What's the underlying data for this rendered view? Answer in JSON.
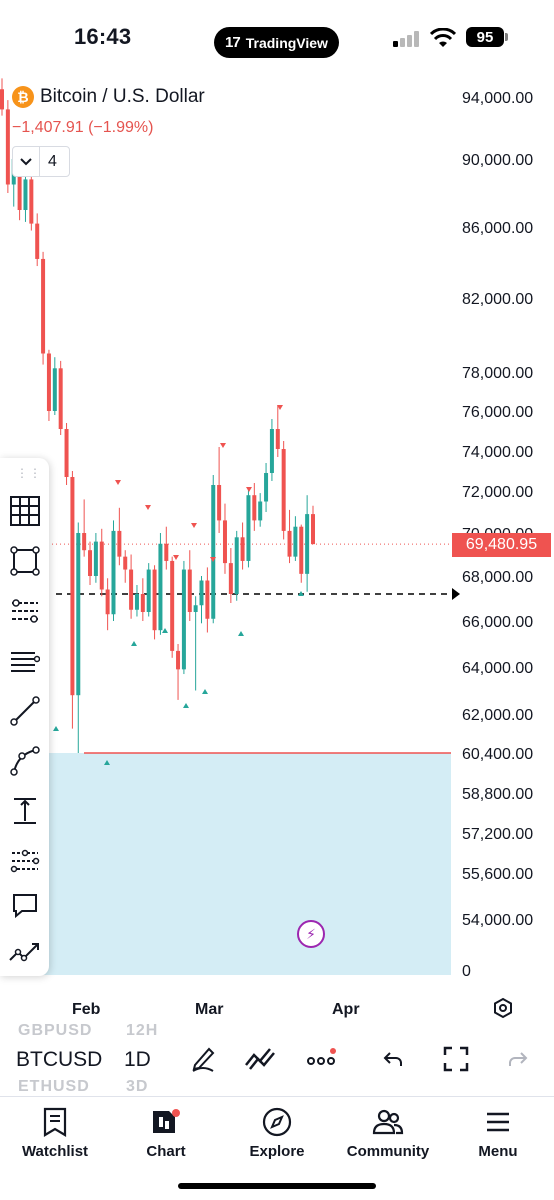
{
  "status": {
    "time": "16:43",
    "app_pill": "TradingView",
    "app_logo": "17",
    "battery": "95"
  },
  "symbol": {
    "title": "Bitcoin / U.S. Dollar",
    "change": "−1,407.91 (−1.99%)",
    "indicator_count": "4",
    "icon_glyph": "₿"
  },
  "price_axis": {
    "labels": [
      "94,000.00",
      "90,000.00",
      "86,000.00",
      "82,000.00",
      "78,000.00",
      "76,000.00",
      "74,000.00",
      "72,000.00",
      "70,000.00",
      "68,000.00",
      "66,000.00",
      "64,000.00",
      "62,000.00",
      "60,400.00",
      "58,800.00",
      "57,200.00",
      "55,600.00",
      "54,000.00"
    ],
    "volume_zero": "0",
    "last_price": "69,480.95"
  },
  "time_axis": {
    "labels": [
      "Feb",
      "Mar",
      "Apr"
    ]
  },
  "bottom_toolbar": {
    "symbol": "BTCUSD",
    "interval": "1D",
    "prev_symbol": "GBPUSD",
    "prev_interval": "12H",
    "next_symbol": "ETHUSD",
    "next_interval": "3D"
  },
  "tabs": [
    {
      "label": "Watchlist",
      "icon": "watchlist-icon"
    },
    {
      "label": "Chart",
      "icon": "chart-icon"
    },
    {
      "label": "Explore",
      "icon": "compass-icon"
    },
    {
      "label": "Community",
      "icon": "community-icon"
    },
    {
      "label": "Menu",
      "icon": "menu-icon"
    }
  ],
  "drawing_tools": [
    "grid-icon",
    "rectangle-icon",
    "fib-retracement-icon",
    "parallel-lines-icon",
    "trend-line-icon",
    "curve-icon",
    "price-range-icon",
    "fib-extension-icon",
    "comment-icon",
    "forecast-icon"
  ],
  "colors": {
    "up": "#26a69a",
    "down": "#ef5350",
    "zone": "#d4edf5",
    "accent": "#9c27b0",
    "text_negative": "#e5544f"
  },
  "chart_data": {
    "type": "candlestick",
    "series_name": "BTCUSD 1D",
    "y_range": [
      52000,
      96000
    ],
    "last_price": 69480.95,
    "horizontal_lines": [
      {
        "style": "dashed",
        "color": "#000000",
        "value": 67200
      },
      {
        "style": "solid",
        "color": "#ef5350",
        "value": 60400
      },
      {
        "style": "dotted",
        "color": "#ef5350",
        "value": 69480.95
      }
    ],
    "zone": {
      "from": 52000,
      "to": 60400,
      "color": "#d4edf5"
    },
    "ohlc": [
      [
        94500,
        95200,
        92800,
        93200
      ],
      [
        93200,
        93800,
        88000,
        88500
      ],
      [
        88500,
        90500,
        87200,
        90000
      ],
      [
        90000,
        90800,
        86400,
        87000
      ],
      [
        87000,
        89000,
        86300,
        88800
      ],
      [
        88800,
        89200,
        85800,
        86200
      ],
      [
        86200,
        86800,
        83800,
        84200
      ],
      [
        84200,
        84600,
        78400,
        79000
      ],
      [
        79000,
        79200,
        75500,
        76000
      ],
      [
        76000,
        78800,
        75800,
        78200
      ],
      [
        78200,
        78600,
        74800,
        75100
      ],
      [
        75100,
        75400,
        72300,
        72700
      ],
      [
        72700,
        73000,
        61400,
        62800
      ],
      [
        62800,
        70500,
        60400,
        70000
      ],
      [
        70000,
        71600,
        68900,
        69200
      ],
      [
        69200,
        69600,
        67600,
        68000
      ],
      [
        68000,
        70000,
        67700,
        69600
      ],
      [
        69600,
        70200,
        67100,
        67400
      ],
      [
        67400,
        67900,
        65600,
        66300
      ],
      [
        66300,
        70600,
        66000,
        70100
      ],
      [
        70100,
        71200,
        68500,
        68900
      ],
      [
        68900,
        69200,
        67700,
        68300
      ],
      [
        68300,
        69000,
        66100,
        66500
      ],
      [
        66500,
        67600,
        66200,
        67200
      ],
      [
        67200,
        67900,
        66000,
        66400
      ],
      [
        66400,
        68600,
        66200,
        68300
      ],
      [
        68300,
        68500,
        65200,
        65600
      ],
      [
        65600,
        70000,
        65400,
        69500
      ],
      [
        69500,
        70300,
        68300,
        68700
      ],
      [
        68700,
        68900,
        64400,
        64700
      ],
      [
        64700,
        65000,
        62600,
        63900
      ],
      [
        63900,
        68700,
        63700,
        68300
      ],
      [
        68300,
        69200,
        66000,
        66400
      ],
      [
        66400,
        67100,
        63000,
        66700
      ],
      [
        66700,
        68000,
        65900,
        67800
      ],
      [
        67800,
        68400,
        65500,
        66100
      ],
      [
        66100,
        72800,
        65900,
        72300
      ],
      [
        72300,
        74200,
        70000,
        70600
      ],
      [
        70600,
        71400,
        68100,
        68600
      ],
      [
        68600,
        69300,
        66800,
        67200
      ],
      [
        67200,
        70100,
        66900,
        69800
      ],
      [
        69800,
        70500,
        68300,
        68700
      ],
      [
        68700,
        72200,
        68400,
        71800
      ],
      [
        71800,
        72400,
        70100,
        70600
      ],
      [
        70600,
        71900,
        70300,
        71500
      ],
      [
        71500,
        73400,
        71000,
        72900
      ],
      [
        72900,
        75600,
        72500,
        75100
      ],
      [
        75100,
        76300,
        73700,
        74100
      ],
      [
        74100,
        74500,
        69700,
        70100
      ],
      [
        70100,
        71100,
        68600,
        68900
      ],
      [
        68900,
        70800,
        68700,
        70300
      ],
      [
        70300,
        70400,
        67700,
        68100
      ],
      [
        68100,
        71800,
        67300,
        70900
      ],
      [
        70900,
        71300,
        69500,
        69481
      ]
    ]
  }
}
